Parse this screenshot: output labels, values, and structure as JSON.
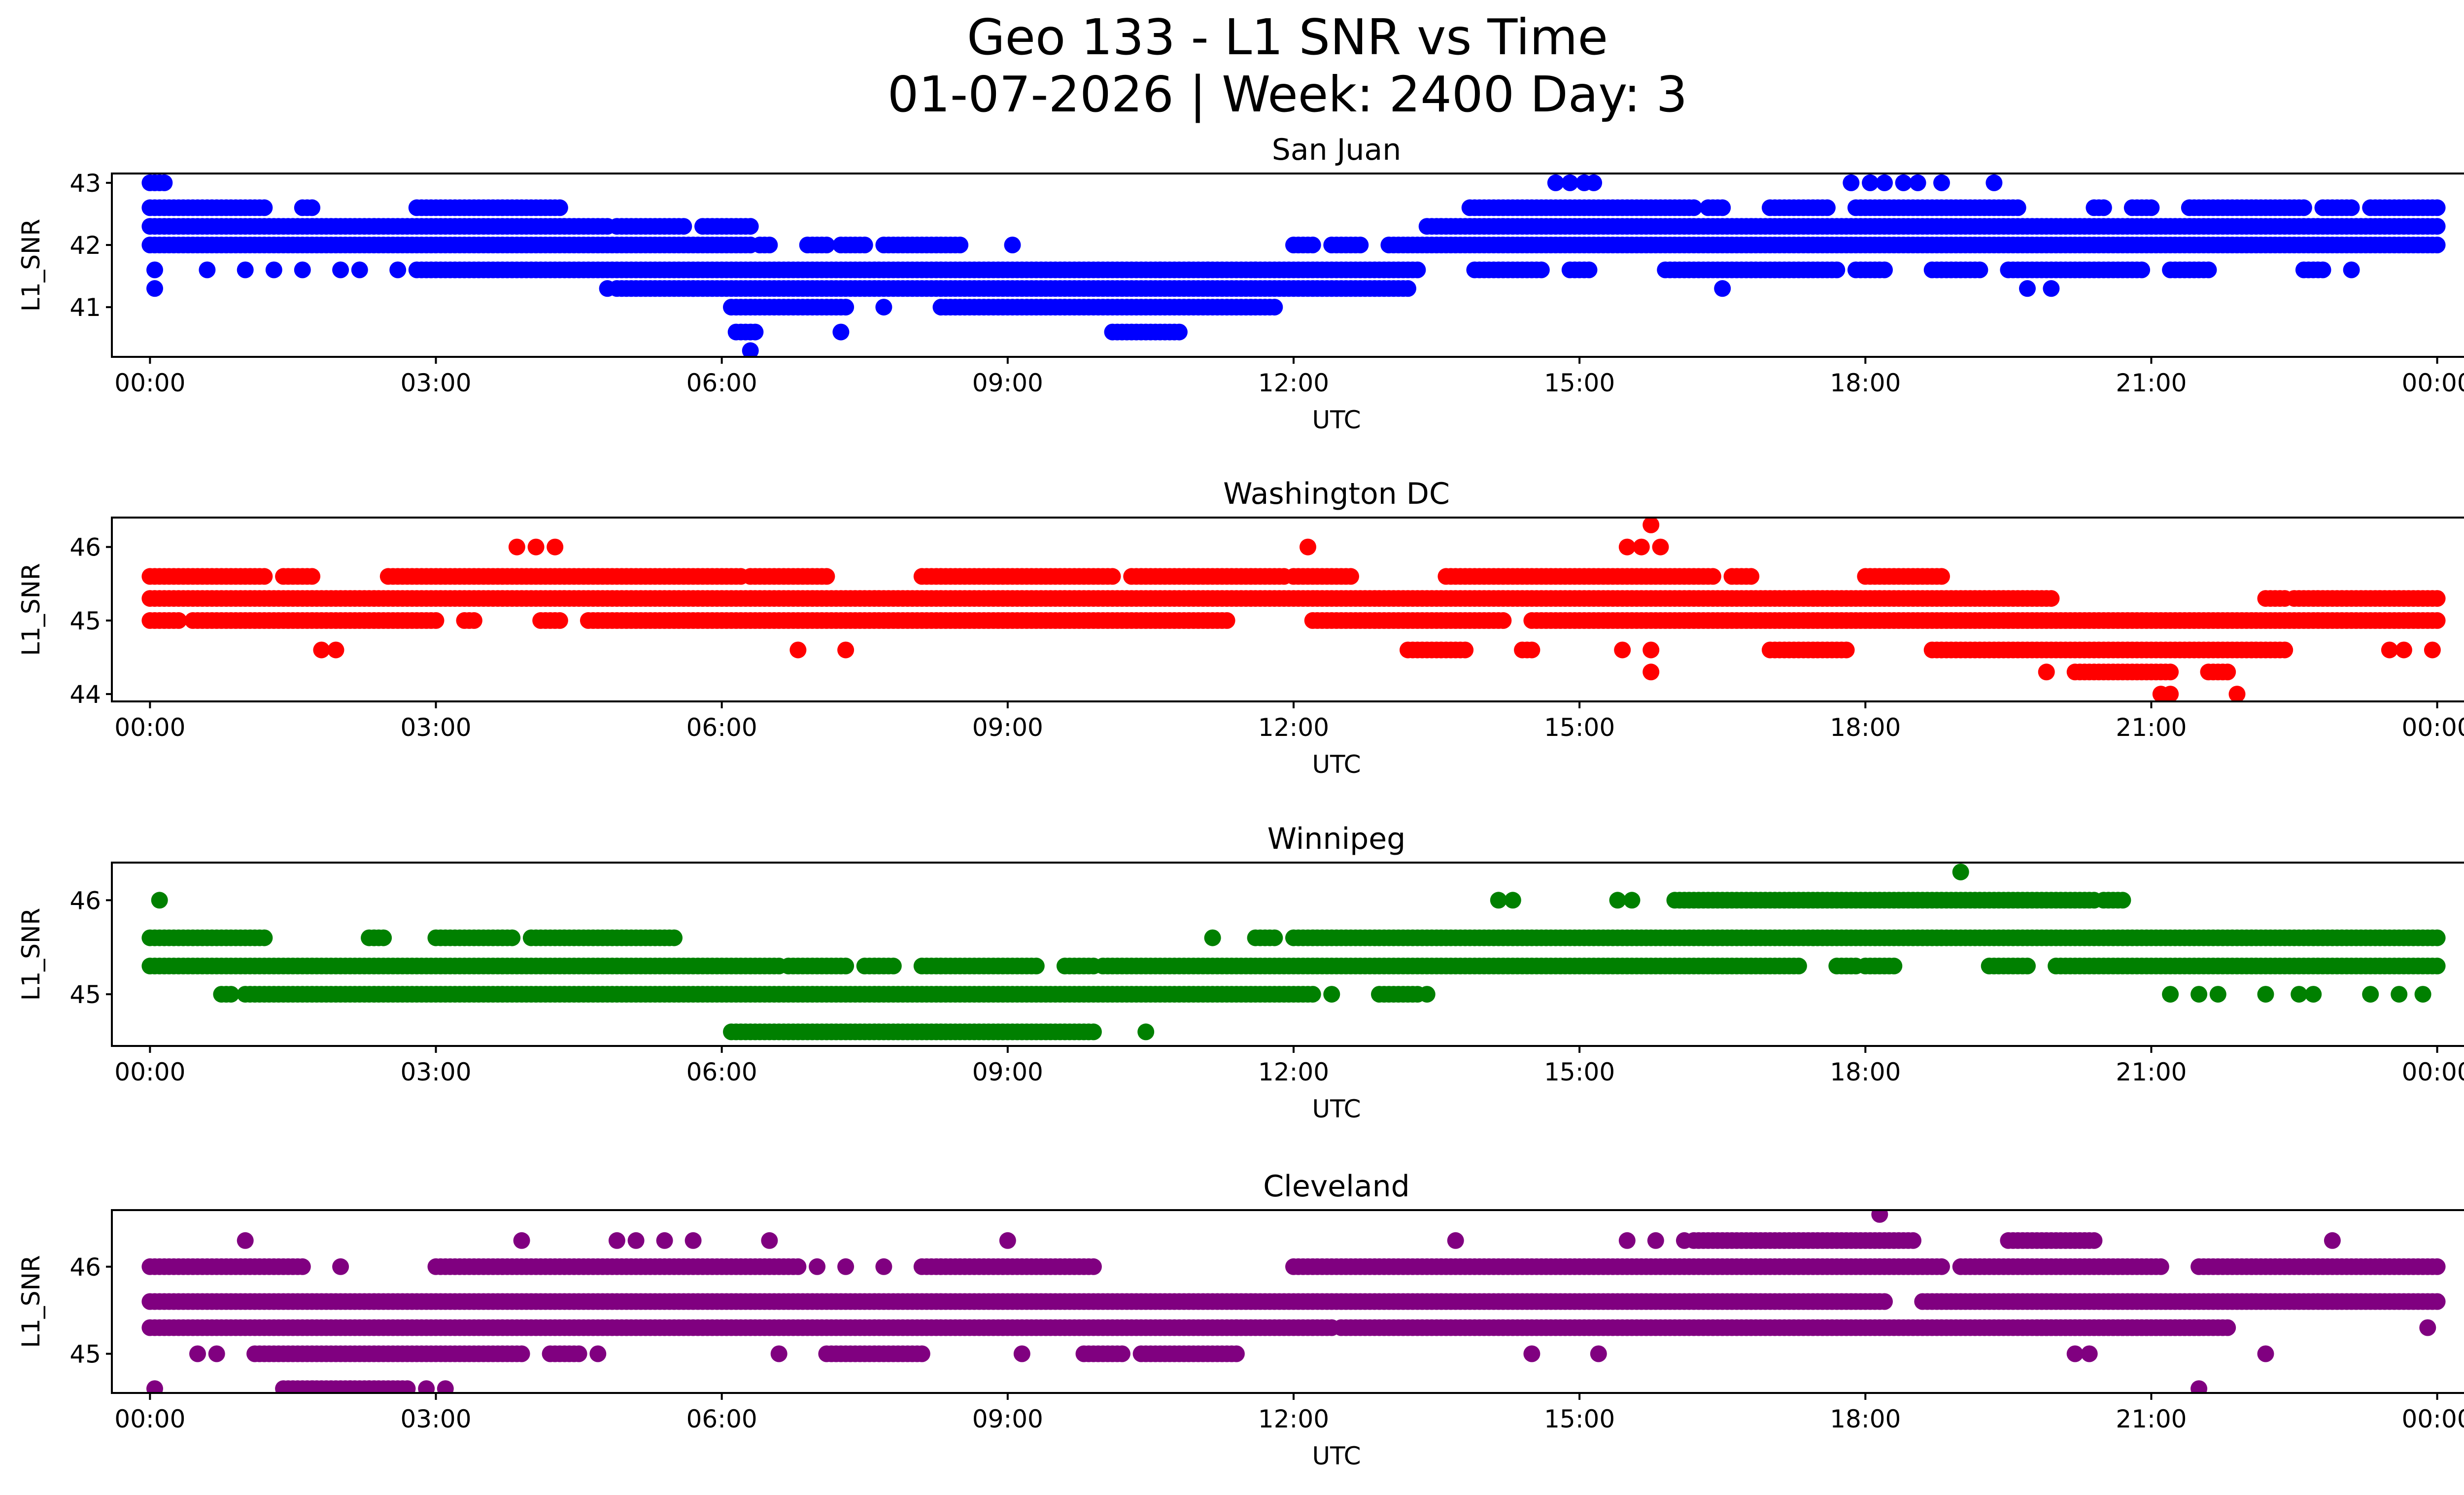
{
  "chart_data": {
    "type": "scatter",
    "title": "Geo 133 - L1 SNR vs Time",
    "subtitle": "01-07-2026 | Week: 2400 Day: 3",
    "x_unit": "hours since 00:00 UTC",
    "xlim": [
      -0.4,
      25.3
    ],
    "x_ticks": [
      {
        "value": 0,
        "label": "00:00"
      },
      {
        "value": 3,
        "label": "03:00"
      },
      {
        "value": 6,
        "label": "06:00"
      },
      {
        "value": 9,
        "label": "09:00"
      },
      {
        "value": 12,
        "label": "12:00"
      },
      {
        "value": 15,
        "label": "15:00"
      },
      {
        "value": 18,
        "label": "18:00"
      },
      {
        "value": 21,
        "label": "21:00"
      },
      {
        "value": 24,
        "label": "00:00"
      }
    ],
    "panels": [
      {
        "title": "San Juan",
        "xlabel": "UTC",
        "ylabel": "L1_SNR",
        "color": "#0000ff",
        "ylim": [
          40.2,
          43.15
        ],
        "y_ticks": [
          41,
          42,
          43
        ],
        "runs": [
          [
            0.0,
            0.15,
            43.0
          ],
          [
            0.0,
            1.2,
            42.6
          ],
          [
            1.6,
            1.7,
            42.6
          ],
          [
            2.8,
            4.3,
            42.6
          ],
          [
            13.85,
            16.2,
            42.6
          ],
          [
            16.35,
            16.5,
            42.6
          ],
          [
            17.0,
            17.6,
            42.6
          ],
          [
            17.9,
            19.6,
            42.6
          ],
          [
            20.4,
            20.5,
            42.6
          ],
          [
            20.8,
            21.0,
            42.6
          ],
          [
            21.4,
            22.6,
            42.6
          ],
          [
            22.8,
            23.1,
            42.6
          ],
          [
            23.3,
            24.0,
            42.6
          ],
          [
            0.0,
            4.8,
            42.3
          ],
          [
            4.9,
            5.6,
            42.3
          ],
          [
            5.8,
            6.3,
            42.3
          ],
          [
            13.4,
            24.0,
            42.3
          ],
          [
            0.0,
            6.3,
            42.0
          ],
          [
            6.4,
            6.5,
            42.0
          ],
          [
            6.9,
            7.1,
            42.0
          ],
          [
            7.25,
            7.5,
            42.0
          ],
          [
            7.7,
            8.5,
            42.0
          ],
          [
            12.0,
            12.2,
            42.0
          ],
          [
            12.4,
            12.7,
            42.0
          ],
          [
            13.0,
            24.0,
            42.0
          ],
          [
            2.8,
            13.3,
            41.6
          ],
          [
            13.9,
            14.6,
            41.6
          ],
          [
            14.9,
            15.1,
            41.6
          ],
          [
            15.9,
            17.7,
            41.6
          ],
          [
            17.9,
            18.2,
            41.6
          ],
          [
            18.7,
            19.2,
            41.6
          ],
          [
            19.5,
            20.9,
            41.6
          ],
          [
            21.2,
            21.6,
            41.6
          ],
          [
            22.6,
            22.8,
            41.6
          ],
          [
            4.9,
            5.7,
            41.3
          ],
          [
            5.7,
            13.2,
            41.3
          ],
          [
            6.1,
            7.3,
            41.0
          ],
          [
            8.3,
            11.8,
            41.0
          ],
          [
            6.15,
            6.35,
            40.6
          ],
          [
            10.1,
            10.8,
            40.6
          ]
        ],
        "points": [
          [
            0.05,
            41.6
          ],
          [
            0.05,
            41.3
          ],
          [
            0.6,
            41.6
          ],
          [
            1.0,
            41.6
          ],
          [
            1.3,
            41.6
          ],
          [
            1.6,
            41.6
          ],
          [
            2.0,
            41.6
          ],
          [
            2.2,
            41.6
          ],
          [
            2.6,
            41.6
          ],
          [
            4.8,
            41.3
          ],
          [
            7.25,
            40.6
          ],
          [
            7.7,
            41.0
          ],
          [
            9.05,
            42.0
          ],
          [
            10.6,
            41.6
          ],
          [
            11.1,
            41.6
          ],
          [
            11.6,
            41.6
          ],
          [
            6.3,
            40.3
          ],
          [
            14.75,
            43.0
          ],
          [
            14.9,
            43.0
          ],
          [
            15.05,
            43.0
          ],
          [
            15.15,
            43.0
          ],
          [
            16.5,
            41.3
          ],
          [
            17.85,
            43.0
          ],
          [
            18.05,
            43.0
          ],
          [
            18.2,
            43.0
          ],
          [
            18.4,
            43.0
          ],
          [
            18.55,
            43.0
          ],
          [
            18.8,
            43.0
          ],
          [
            19.35,
            43.0
          ],
          [
            19.7,
            41.3
          ],
          [
            19.95,
            41.3
          ],
          [
            23.1,
            41.6
          ]
        ]
      },
      {
        "title": "Washington DC",
        "xlabel": "UTC",
        "ylabel": "L1_SNR",
        "color": "#ff0000",
        "ylim": [
          43.9,
          46.4
        ],
        "y_ticks": [
          44,
          45,
          46
        ],
        "runs": [
          [
            0.0,
            1.2,
            45.6
          ],
          [
            1.4,
            1.7,
            45.6
          ],
          [
            2.5,
            6.2,
            45.6
          ],
          [
            6.3,
            7.1,
            45.6
          ],
          [
            8.1,
            10.1,
            45.6
          ],
          [
            10.3,
            11.9,
            45.6
          ],
          [
            12.0,
            12.6,
            45.6
          ],
          [
            13.6,
            16.4,
            45.6
          ],
          [
            16.6,
            16.8,
            45.6
          ],
          [
            18.0,
            18.8,
            45.6
          ],
          [
            0.0,
            19.95,
            45.3
          ],
          [
            22.2,
            22.4,
            45.3
          ],
          [
            22.5,
            24.0,
            45.3
          ],
          [
            0.0,
            0.3,
            45.0
          ],
          [
            0.45,
            3.0,
            45.0
          ],
          [
            3.3,
            3.4,
            45.0
          ],
          [
            4.1,
            4.3,
            45.0
          ],
          [
            4.6,
            11.3,
            45.0
          ],
          [
            12.2,
            14.2,
            45.0
          ],
          [
            14.5,
            24.0,
            45.0
          ],
          [
            13.2,
            13.8,
            44.6
          ],
          [
            14.4,
            14.5,
            44.6
          ],
          [
            17.0,
            17.8,
            44.6
          ],
          [
            18.7,
            22.4,
            44.6
          ],
          [
            20.2,
            21.2,
            44.3
          ],
          [
            21.6,
            21.8,
            44.3
          ]
        ],
        "points": [
          [
            1.8,
            44.6
          ],
          [
            1.95,
            44.6
          ],
          [
            3.85,
            46.0
          ],
          [
            4.05,
            46.0
          ],
          [
            4.25,
            46.0
          ],
          [
            6.8,
            44.6
          ],
          [
            7.3,
            44.6
          ],
          [
            12.15,
            46.0
          ],
          [
            15.5,
            46.0
          ],
          [
            15.65,
            46.0
          ],
          [
            15.75,
            46.3
          ],
          [
            15.85,
            46.0
          ],
          [
            15.45,
            44.6
          ],
          [
            15.75,
            44.6
          ],
          [
            15.75,
            44.3
          ],
          [
            19.9,
            44.3
          ],
          [
            21.1,
            44.0
          ],
          [
            21.2,
            44.0
          ],
          [
            21.9,
            44.0
          ],
          [
            23.5,
            44.6
          ],
          [
            23.65,
            44.6
          ],
          [
            23.95,
            44.6
          ]
        ]
      },
      {
        "title": "Winnipeg",
        "xlabel": "UTC",
        "ylabel": "L1_SNR",
        "color": "#008000",
        "ylim": [
          44.45,
          46.4
        ],
        "y_ticks": [
          45,
          46
        ],
        "runs": [
          [
            0.0,
            1.2,
            45.6
          ],
          [
            2.3,
            2.45,
            45.6
          ],
          [
            3.0,
            3.8,
            45.6
          ],
          [
            4.0,
            5.5,
            45.6
          ],
          [
            11.6,
            11.8,
            45.6
          ],
          [
            12.0,
            24.0,
            45.6
          ],
          [
            0.0,
            6.6,
            45.3
          ],
          [
            6.7,
            7.3,
            45.3
          ],
          [
            7.5,
            7.8,
            45.3
          ],
          [
            8.1,
            9.3,
            45.3
          ],
          [
            9.6,
            9.9,
            45.3
          ],
          [
            10.0,
            17.3,
            45.3
          ],
          [
            17.7,
            17.9,
            45.3
          ],
          [
            18.0,
            18.3,
            45.3
          ],
          [
            19.3,
            19.7,
            45.3
          ],
          [
            20.0,
            24.0,
            45.3
          ],
          [
            0.75,
            0.85,
            45.0
          ],
          [
            1.0,
            12.2,
            45.0
          ],
          [
            12.9,
            13.3,
            45.0
          ],
          [
            6.1,
            9.9,
            44.6
          ],
          [
            16.0,
            20.4,
            46.0
          ],
          [
            20.5,
            20.7,
            46.0
          ]
        ],
        "points": [
          [
            0.1,
            46.0
          ],
          [
            12.4,
            45.0
          ],
          [
            13.4,
            45.0
          ],
          [
            10.45,
            44.6
          ],
          [
            11.15,
            45.6
          ],
          [
            14.15,
            46.0
          ],
          [
            14.3,
            46.0
          ],
          [
            15.4,
            46.0
          ],
          [
            15.55,
            46.0
          ],
          [
            19.0,
            46.3
          ],
          [
            21.2,
            45.0
          ],
          [
            21.5,
            45.0
          ],
          [
            21.7,
            45.0
          ],
          [
            22.2,
            45.0
          ],
          [
            22.55,
            45.0
          ],
          [
            22.7,
            45.0
          ],
          [
            23.3,
            45.0
          ],
          [
            23.6,
            45.0
          ],
          [
            23.85,
            45.0
          ]
        ]
      },
      {
        "title": "Cleveland",
        "xlabel": "UTC",
        "ylabel": "L1_SNR",
        "color": "#800080",
        "ylim": [
          44.55,
          46.65
        ],
        "y_ticks": [
          45,
          46
        ],
        "runs": [
          [
            0.0,
            1.6,
            46.0
          ],
          [
            3.0,
            6.8,
            46.0
          ],
          [
            8.1,
            9.9,
            46.0
          ],
          [
            12.0,
            18.8,
            46.0
          ],
          [
            19.0,
            21.1,
            46.0
          ],
          [
            21.5,
            24.0,
            46.0
          ],
          [
            16.2,
            18.5,
            46.3
          ],
          [
            19.5,
            20.4,
            46.3
          ],
          [
            0.0,
            18.2,
            45.6
          ],
          [
            18.6,
            24.0,
            45.6
          ],
          [
            0.0,
            12.4,
            45.3
          ],
          [
            12.5,
            21.5,
            45.3
          ],
          [
            19.8,
            21.8,
            45.3
          ],
          [
            1.1,
            3.9,
            45.0
          ],
          [
            4.2,
            4.5,
            45.0
          ],
          [
            7.1,
            8.1,
            45.0
          ],
          [
            9.8,
            10.2,
            45.0
          ],
          [
            10.4,
            11.4,
            45.0
          ],
          [
            1.4,
            2.7,
            44.6
          ]
        ],
        "points": [
          [
            0.05,
            44.6
          ],
          [
            0.5,
            45.0
          ],
          [
            0.7,
            45.0
          ],
          [
            1.0,
            46.3
          ],
          [
            2.0,
            46.0
          ],
          [
            2.1,
            44.6
          ],
          [
            2.3,
            44.6
          ],
          [
            2.9,
            44.6
          ],
          [
            3.1,
            44.6
          ],
          [
            3.9,
            46.3
          ],
          [
            4.7,
            45.0
          ],
          [
            4.9,
            46.3
          ],
          [
            5.1,
            46.3
          ],
          [
            5.4,
            46.3
          ],
          [
            5.7,
            46.3
          ],
          [
            6.5,
            46.3
          ],
          [
            6.6,
            45.0
          ],
          [
            7.0,
            46.0
          ],
          [
            7.3,
            46.0
          ],
          [
            7.7,
            46.0
          ],
          [
            9.0,
            46.3
          ],
          [
            9.15,
            45.0
          ],
          [
            11.4,
            45.3
          ],
          [
            13.7,
            46.3
          ],
          [
            14.5,
            45.0
          ],
          [
            15.2,
            45.0
          ],
          [
            15.5,
            46.3
          ],
          [
            15.8,
            46.3
          ],
          [
            16.1,
            46.3
          ],
          [
            18.15,
            46.6
          ],
          [
            20.2,
            45.0
          ],
          [
            20.35,
            45.0
          ],
          [
            21.5,
            44.6
          ],
          [
            22.2,
            45.0
          ],
          [
            22.9,
            46.3
          ],
          [
            23.9,
            45.3
          ]
        ]
      }
    ]
  }
}
